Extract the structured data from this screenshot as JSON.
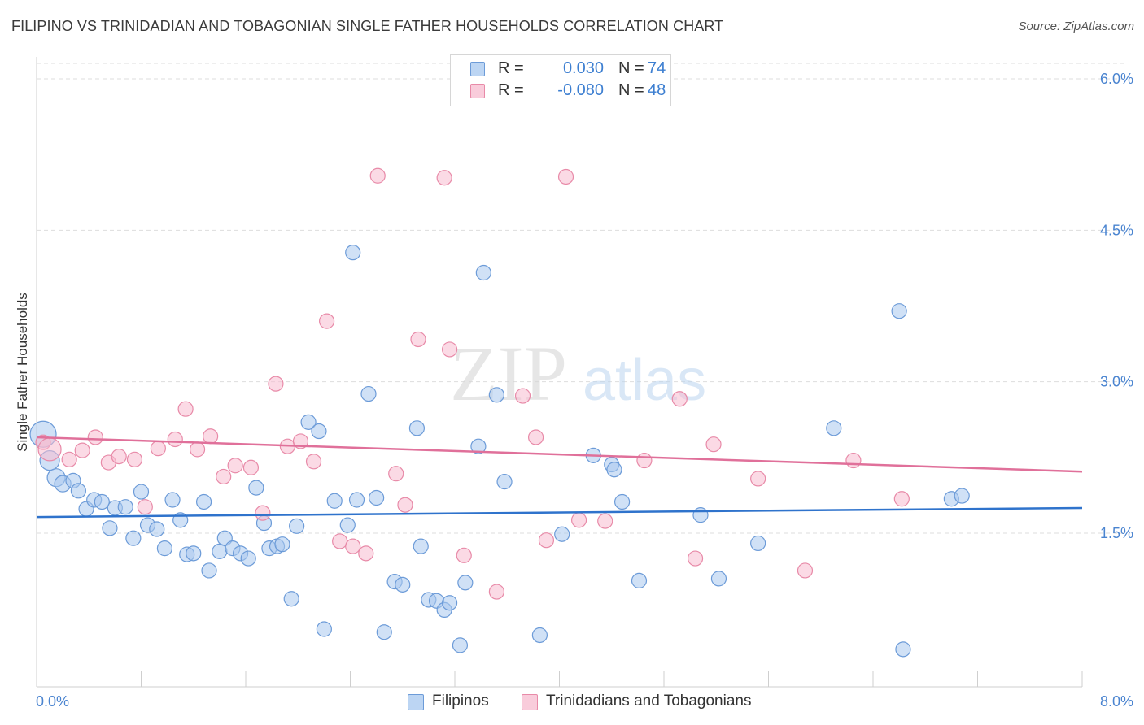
{
  "header": {
    "title": "FILIPINO VS TRINIDADIAN AND TOBAGONIAN SINGLE FATHER HOUSEHOLDS CORRELATION CHART",
    "source": "Source: ZipAtlas.com"
  },
  "watermark": {
    "part1": "ZIP",
    "part2": "atlas"
  },
  "legend_top": {
    "rows": [
      {
        "r_label": "R =",
        "r_value": "0.030",
        "n_label": "N =",
        "n_value": "74"
      },
      {
        "r_label": "R =",
        "r_value": "-0.080",
        "n_label": "N =",
        "n_value": "48"
      }
    ]
  },
  "legend_bottom": {
    "items": [
      "Filipinos",
      "Trinidadians and Tobagonians"
    ]
  },
  "colors": {
    "blue_fill": "#a9c8ef",
    "blue_stroke": "#6c9bd8",
    "blue_line": "#2f73cc",
    "pink_fill": "#f7bcd0",
    "pink_stroke": "#e88aa8",
    "pink_line": "#e0709a",
    "tick_label": "#4a84d0",
    "grid": "#dddddd"
  },
  "chart_data": {
    "type": "scatter",
    "title": "FILIPINO VS TRINIDADIAN AND TOBAGONIAN SINGLE FATHER HOUSEHOLDS CORRELATION CHART",
    "xlabel": "",
    "ylabel": "Single Father Households",
    "xlim": [
      0,
      8
    ],
    "ylim": [
      0,
      6.2
    ],
    "x_tick_labels": [
      "0.0%",
      "8.0%"
    ],
    "y_ticks": [
      1.5,
      3.0,
      4.5,
      6.0
    ],
    "y_tick_labels": [
      "1.5%",
      "3.0%",
      "4.5%",
      "6.0%"
    ],
    "grid": true,
    "legend_placement": "top-center",
    "series": [
      {
        "name": "Filipinos",
        "R": 0.03,
        "N": 74,
        "trend": {
          "x": [
            0,
            8
          ],
          "y": [
            1.66,
            1.75
          ]
        },
        "points": [
          [
            0.05,
            2.48,
            16
          ],
          [
            0.1,
            2.22,
            12
          ],
          [
            0.15,
            2.05,
            11
          ],
          [
            0.2,
            1.99,
            10
          ],
          [
            0.28,
            2.02,
            9
          ],
          [
            0.32,
            1.92,
            9
          ],
          [
            0.38,
            1.74,
            9
          ],
          [
            0.44,
            1.83,
            9
          ],
          [
            0.5,
            1.81,
            9
          ],
          [
            0.56,
            1.55,
            9
          ],
          [
            0.6,
            1.75,
            9
          ],
          [
            0.68,
            1.76,
            9
          ],
          [
            0.74,
            1.45,
            9
          ],
          [
            0.8,
            1.91,
            9
          ],
          [
            0.85,
            1.58,
            9
          ],
          [
            0.92,
            1.54,
            9
          ],
          [
            0.98,
            1.35,
            9
          ],
          [
            1.04,
            1.83,
            9
          ],
          [
            1.1,
            1.63,
            9
          ],
          [
            1.15,
            1.29,
            9
          ],
          [
            1.2,
            1.3,
            9
          ],
          [
            1.28,
            1.81,
            9
          ],
          [
            1.32,
            1.13,
            9
          ],
          [
            1.4,
            1.32,
            9
          ],
          [
            1.44,
            1.45,
            9
          ],
          [
            1.5,
            1.35,
            9
          ],
          [
            1.56,
            1.3,
            9
          ],
          [
            1.62,
            1.25,
            9
          ],
          [
            1.68,
            1.95,
            9
          ],
          [
            1.74,
            1.6,
            9
          ],
          [
            1.78,
            1.35,
            9
          ],
          [
            1.84,
            1.37,
            9
          ],
          [
            1.88,
            1.39,
            9
          ],
          [
            1.95,
            0.85,
            9
          ],
          [
            1.99,
            1.57,
            9
          ],
          [
            2.08,
            2.6,
            9
          ],
          [
            2.16,
            2.51,
            9
          ],
          [
            2.2,
            0.55,
            9
          ],
          [
            2.28,
            1.82,
            9
          ],
          [
            2.38,
            1.58,
            9
          ],
          [
            2.42,
            4.28,
            9
          ],
          [
            2.45,
            1.83,
            9
          ],
          [
            2.54,
            2.88,
            9
          ],
          [
            2.6,
            1.85,
            9
          ],
          [
            2.66,
            0.52,
            9
          ],
          [
            2.74,
            1.02,
            9
          ],
          [
            2.8,
            0.99,
            9
          ],
          [
            2.91,
            2.54,
            9
          ],
          [
            2.94,
            1.37,
            9
          ],
          [
            3.0,
            0.84,
            9
          ],
          [
            3.06,
            0.83,
            9
          ],
          [
            3.12,
            0.74,
            9
          ],
          [
            3.16,
            0.81,
            9
          ],
          [
            3.24,
            0.39,
            9
          ],
          [
            3.28,
            1.01,
            9
          ],
          [
            3.38,
            2.36,
            9
          ],
          [
            3.42,
            4.08,
            9
          ],
          [
            3.52,
            2.87,
            9
          ],
          [
            3.58,
            2.01,
            9
          ],
          [
            3.85,
            0.49,
            9
          ],
          [
            4.02,
            1.49,
            9
          ],
          [
            4.26,
            2.27,
            9
          ],
          [
            4.4,
            2.18,
            9
          ],
          [
            4.42,
            2.13,
            9
          ],
          [
            4.48,
            1.81,
            9
          ],
          [
            4.61,
            1.03,
            9
          ],
          [
            5.08,
            1.68,
            9
          ],
          [
            5.22,
            1.05,
            9
          ],
          [
            5.52,
            1.4,
            9
          ],
          [
            6.1,
            2.54,
            9
          ],
          [
            6.6,
            3.7,
            9
          ],
          [
            6.63,
            0.35,
            9
          ],
          [
            7.0,
            1.84,
            9
          ],
          [
            7.08,
            1.87,
            9
          ]
        ]
      },
      {
        "name": "Trinidadians and Tobagonians",
        "R": -0.08,
        "N": 48,
        "trend": {
          "x": [
            0,
            8
          ],
          "y": [
            2.45,
            2.11
          ]
        },
        "points": [
          [
            0.05,
            2.4,
            9
          ],
          [
            0.1,
            2.33,
            14
          ],
          [
            0.25,
            2.23,
            9
          ],
          [
            0.35,
            2.32,
            9
          ],
          [
            0.45,
            2.45,
            9
          ],
          [
            0.55,
            2.2,
            9
          ],
          [
            0.63,
            2.26,
            9
          ],
          [
            0.75,
            2.23,
            9
          ],
          [
            0.83,
            1.76,
            9
          ],
          [
            0.93,
            2.34,
            9
          ],
          [
            1.06,
            2.43,
            9
          ],
          [
            1.14,
            2.73,
            9
          ],
          [
            1.23,
            2.33,
            9
          ],
          [
            1.33,
            2.46,
            9
          ],
          [
            1.43,
            2.06,
            9
          ],
          [
            1.52,
            2.17,
            9
          ],
          [
            1.64,
            2.15,
            9
          ],
          [
            1.73,
            1.7,
            9
          ],
          [
            1.83,
            2.98,
            9
          ],
          [
            1.92,
            2.36,
            9
          ],
          [
            2.02,
            2.41,
            9
          ],
          [
            2.12,
            2.21,
            9
          ],
          [
            2.22,
            3.6,
            9
          ],
          [
            2.32,
            1.42,
            9
          ],
          [
            2.42,
            1.37,
            9
          ],
          [
            2.52,
            1.3,
            9
          ],
          [
            2.61,
            5.04,
            9
          ],
          [
            2.75,
            2.09,
            9
          ],
          [
            2.82,
            1.78,
            9
          ],
          [
            2.92,
            3.42,
            9
          ],
          [
            3.12,
            5.02,
            9
          ],
          [
            3.16,
            3.32,
            9
          ],
          [
            3.27,
            1.28,
            9
          ],
          [
            3.52,
            0.92,
            9
          ],
          [
            3.72,
            2.86,
            9
          ],
          [
            3.82,
            2.45,
            9
          ],
          [
            3.9,
            1.43,
            9
          ],
          [
            4.05,
            5.03,
            9
          ],
          [
            4.15,
            1.63,
            9
          ],
          [
            4.35,
            1.62,
            9
          ],
          [
            4.65,
            2.22,
            9
          ],
          [
            4.92,
            2.83,
            9
          ],
          [
            5.04,
            1.25,
            9
          ],
          [
            5.18,
            2.38,
            9
          ],
          [
            5.52,
            2.04,
            9
          ],
          [
            5.88,
            1.13,
            9
          ],
          [
            6.25,
            2.22,
            9
          ],
          [
            6.62,
            1.84,
            9
          ]
        ]
      }
    ]
  }
}
